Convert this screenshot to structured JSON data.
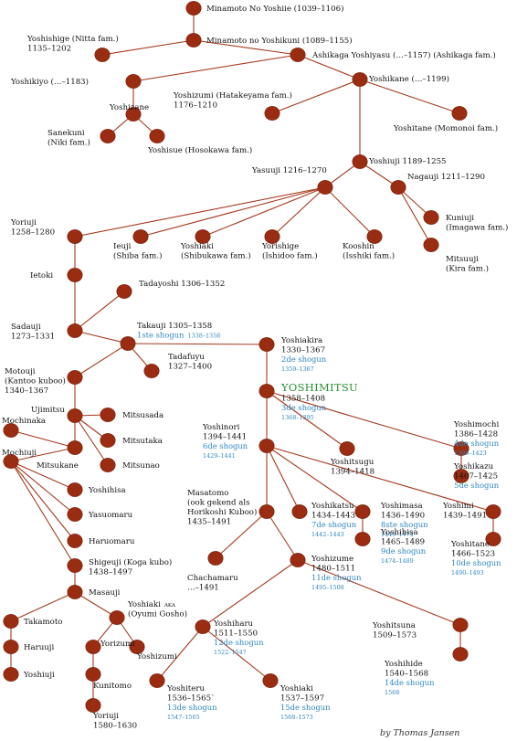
{
  "colors": {
    "line": "#a6391e",
    "node": "#9a2c12",
    "shogun_text": "#2f86bf",
    "highlight": "#2a8f35",
    "text": "#111111"
  },
  "labels": [
    {
      "id": "minamoto-yoshiie",
      "lines": [
        {
          "t": "Minamoto No Yoshiie (1039–1106)"
        }
      ]
    },
    {
      "id": "yoshishige",
      "lines": [
        {
          "t": "Yoshishige (Nitta fam.)"
        },
        {
          "t": "1135–1202"
        }
      ]
    },
    {
      "id": "minamoto-yoshikuni",
      "lines": [
        {
          "t": "Minamoto no Yoshikuni (1089–1155)"
        }
      ]
    },
    {
      "id": "ashikaga-yoshiyasu",
      "lines": [
        {
          "t": "Ashikaga Yoshiyasu (…–1157) (Ashikaga fam.)"
        }
      ]
    },
    {
      "id": "yoshikiyo",
      "lines": [
        {
          "t": "Yoshikiyo (…–1183)"
        }
      ]
    },
    {
      "id": "yoshikane",
      "lines": [
        {
          "t": "Yoshikane (…–1199)"
        }
      ]
    },
    {
      "id": "yoshizumi-hatakeyama",
      "lines": [
        {
          "t": "Yoshizumi (Hatakeyama fam.)"
        },
        {
          "t": "1176–1210"
        }
      ]
    },
    {
      "id": "yoshizane",
      "lines": [
        {
          "t": "Yoshizane"
        }
      ]
    },
    {
      "id": "sanekuni",
      "lines": [
        {
          "t": "Sanekuni"
        },
        {
          "t": "(Niki fam.)"
        }
      ]
    },
    {
      "id": "yoshisue",
      "lines": [
        {
          "t": "Yoshisue (Hosokawa fam.)"
        }
      ]
    },
    {
      "id": "yoshitane-momonoi",
      "lines": [
        {
          "t": "Yoshitane (Momonoi fam.)"
        }
      ]
    },
    {
      "id": "yoshiuji",
      "lines": [
        {
          "t": "Yoshiuji 1189–1255"
        }
      ]
    },
    {
      "id": "yasuuji",
      "lines": [
        {
          "t": "Yasuuji 1216–1270"
        }
      ]
    },
    {
      "id": "nagauji",
      "lines": [
        {
          "t": "Nagauji 1211–1290"
        }
      ]
    },
    {
      "id": "yoriuji",
      "lines": [
        {
          "t": "Yoriuji"
        },
        {
          "t": "1258–1280"
        }
      ]
    },
    {
      "id": "ieuji",
      "lines": [
        {
          "t": "Ieuji"
        },
        {
          "t": "(Shiba fam.)"
        }
      ]
    },
    {
      "id": "yoshiaki-shibukawa",
      "lines": [
        {
          "t": "Yoshiaki"
        },
        {
          "t": "(Shibukawa fam.)"
        }
      ]
    },
    {
      "id": "yorishige",
      "lines": [
        {
          "t": "Yorishige"
        },
        {
          "t": "(Ishidoo fam.)"
        }
      ]
    },
    {
      "id": "kooshin",
      "lines": [
        {
          "t": "Kooshin"
        },
        {
          "t": "(Isshiki fam.)"
        }
      ]
    },
    {
      "id": "kuniuji",
      "lines": [
        {
          "t": "Kuniuji"
        },
        {
          "t": "(Imagawa fam.)"
        }
      ]
    },
    {
      "id": "mitsuuji",
      "lines": [
        {
          "t": "Mitsuuji"
        },
        {
          "t": "(Kira fam.)"
        }
      ]
    },
    {
      "id": "ietoki",
      "lines": [
        {
          "t": "Ietoki"
        }
      ]
    },
    {
      "id": "tadayoshi",
      "lines": [
        {
          "t": "Tadayoshi 1306–1352"
        }
      ]
    },
    {
      "id": "sadauji",
      "lines": [
        {
          "t": "Sadauji"
        },
        {
          "t": "1273–1331"
        }
      ]
    },
    {
      "id": "takauji",
      "lines": [
        {
          "t": "Takauji 1305–1358"
        },
        {
          "t": "1ste shogun",
          "c": "sh",
          "tail": {
            "t": "1338–1358",
            "c": "yr"
          }
        }
      ]
    },
    {
      "id": "tadafuyu",
      "lines": [
        {
          "t": "Tadafuyu"
        },
        {
          "t": "1327–1400"
        }
      ]
    },
    {
      "id": "yoshiakira",
      "lines": [
        {
          "t": "Yoshiakira"
        },
        {
          "t": "1330–1367"
        },
        {
          "t": "2de shogun",
          "c": "sh"
        },
        {
          "t": "1359–1367",
          "c": "yr"
        }
      ]
    },
    {
      "id": "motouji",
      "lines": [
        {
          "t": "Motouji"
        },
        {
          "t": "(Kantoo kuboo)"
        },
        {
          "t": "1340–1367"
        }
      ]
    },
    {
      "id": "yoshimitsu",
      "lines": [
        {
          "t": "YOSHIMITSU",
          "c": "big"
        },
        {
          "t": "1358–1408"
        },
        {
          "t": "3de shogun",
          "c": "sh"
        },
        {
          "t": "1368–1395",
          "c": "yr"
        }
      ]
    },
    {
      "id": "ujimitsu",
      "lines": [
        {
          "t": "Ujimitsu"
        }
      ]
    },
    {
      "id": "mochinaka",
      "lines": [
        {
          "t": "Mochinaka"
        }
      ]
    },
    {
      "id": "mitsusada",
      "lines": [
        {
          "t": "Mitsusada"
        }
      ]
    },
    {
      "id": "mochiuji",
      "lines": [
        {
          "t": "Mochiuji"
        }
      ]
    },
    {
      "id": "mitsutaka",
      "lines": [
        {
          "t": "Mitsutaka"
        }
      ]
    },
    {
      "id": "mitsukane",
      "lines": [
        {
          "t": "Mitsukane"
        }
      ]
    },
    {
      "id": "mitsunao",
      "lines": [
        {
          "t": "Mitsunao"
        }
      ]
    },
    {
      "id": "yoshinori",
      "lines": [
        {
          "t": "Yoshinori"
        },
        {
          "t": "1394–1441"
        },
        {
          "t": "6de shogun",
          "c": "sh"
        },
        {
          "t": "1429–1441",
          "c": "yr"
        }
      ]
    },
    {
      "id": "yoshitsugu",
      "lines": [
        {
          "t": "Yoshitsugu"
        },
        {
          "t": "1394–1418"
        }
      ]
    },
    {
      "id": "yoshimochi",
      "lines": [
        {
          "t": "Yoshimochi"
        },
        {
          "t": "1386–1428"
        },
        {
          "t": "4de shogun",
          "c": "sh"
        },
        {
          "t": "1395–1423",
          "c": "yr"
        }
      ]
    },
    {
      "id": "yoshikazu",
      "lines": [
        {
          "t": "Yoshikazu"
        },
        {
          "t": "1407–1425"
        },
        {
          "t": "5de shogun",
          "c": "sh"
        }
      ]
    },
    {
      "id": "yoshihisa-koga",
      "lines": [
        {
          "t": "Yoshihisa"
        }
      ]
    },
    {
      "id": "yasuomaru",
      "lines": [
        {
          "t": "Yasuomaru"
        }
      ]
    },
    {
      "id": "masatomo",
      "lines": [
        {
          "t": "Masatomo"
        },
        {
          "t": "(ook gekend als"
        },
        {
          "t": "Horikoshi Kuboo)"
        },
        {
          "t": "1435–1491"
        }
      ]
    },
    {
      "id": "yoshikatsu",
      "lines": [
        {
          "t": "Yoshikatsu"
        },
        {
          "t": "1434–1443"
        },
        {
          "t": "7de shogun",
          "c": "sh"
        },
        {
          "t": "1442–1443",
          "c": "yr"
        }
      ]
    },
    {
      "id": "yoshimasa",
      "lines": [
        {
          "t": "Yoshimasa"
        },
        {
          "t": "1436–1490"
        },
        {
          "t": "8ste shogun",
          "c": "sh"
        },
        {
          "t": "1449–1474",
          "c": "yr"
        }
      ]
    },
    {
      "id": "yoshimi",
      "lines": [
        {
          "t": "Yoshimi"
        },
        {
          "t": "1439–1491"
        }
      ]
    },
    {
      "id": "haruomaru",
      "lines": [
        {
          "t": "Haruomaru"
        }
      ]
    },
    {
      "id": "yoshihisa",
      "lines": [
        {
          "t": "Yoshihisa"
        },
        {
          "t": "1465–1489"
        },
        {
          "t": "9de shogun",
          "c": "sh"
        },
        {
          "t": "1474–1489",
          "c": "yr"
        }
      ]
    },
    {
      "id": "yoshitane",
      "lines": [
        {
          "t": "Yoshitane"
        },
        {
          "t": "1466–1523"
        },
        {
          "t": "10de shogun",
          "c": "sh"
        },
        {
          "t": "1490–1493",
          "c": "yr"
        }
      ]
    },
    {
      "id": "shigeuji",
      "lines": [
        {
          "t": "Shigeuji (Koga kubo)"
        },
        {
          "t": "1438–1497"
        }
      ]
    },
    {
      "id": "chachamaru",
      "lines": [
        {
          "t": "Chachamaru"
        },
        {
          "t": "…–1491"
        }
      ]
    },
    {
      "id": "yoshizume",
      "lines": [
        {
          "t": "Yoshizume"
        },
        {
          "t": "1480–1511"
        },
        {
          "t": "11de shogun",
          "c": "sh"
        },
        {
          "t": "1495–1508",
          "c": "yr"
        }
      ]
    },
    {
      "id": "masauji",
      "lines": [
        {
          "t": "Masauji"
        }
      ]
    },
    {
      "id": "yoshiharu",
      "lines": [
        {
          "t": "Yoshiharu"
        },
        {
          "t": "1511–1550"
        },
        {
          "t": "12de shogun",
          "c": "sh"
        },
        {
          "t": "1522–1547",
          "c": "yr"
        }
      ]
    },
    {
      "id": "yoshitsuna",
      "lines": [
        {
          "t": "Yoshitsuna"
        },
        {
          "t": "1509–1573"
        }
      ]
    },
    {
      "id": "takamoto",
      "lines": [
        {
          "t": "Takamoto"
        }
      ]
    },
    {
      "id": "yoshiaki-koga",
      "lines": [
        {
          "t": "Yoshiaki",
          "tail": {
            "t": "AKA",
            "c": "aka"
          }
        },
        {
          "t": "(Oyumi Gosho)"
        }
      ]
    },
    {
      "id": "haruuji",
      "lines": [
        {
          "t": "Haruuji"
        }
      ]
    },
    {
      "id": "yorizumi",
      "lines": [
        {
          "t": "Yorizumi"
        }
      ]
    },
    {
      "id": "yoshizumi",
      "lines": [
        {
          "t": "Yoshizumi"
        }
      ]
    },
    {
      "id": "yoshihide",
      "lines": [
        {
          "t": "Yoshihide"
        },
        {
          "t": "1540–1568"
        },
        {
          "t": "14de shogun",
          "c": "sh"
        },
        {
          "t": "1568",
          "c": "yr"
        }
      ]
    },
    {
      "id": "yoshiuji-koga",
      "lines": [
        {
          "t": "Yoshiuji"
        }
      ]
    },
    {
      "id": "kunitomo",
      "lines": [
        {
          "t": "Kunitomo"
        }
      ]
    },
    {
      "id": "yoshiteru",
      "lines": [
        {
          "t": "Yoshiteru"
        },
        {
          "t": "1536–1565`"
        },
        {
          "t": "13de shogun",
          "c": "sh"
        },
        {
          "t": "1547–1565",
          "c": "yr"
        }
      ]
    },
    {
      "id": "yoshiaki",
      "lines": [
        {
          "t": "Yoshiaki"
        },
        {
          "t": "1537–1597"
        },
        {
          "t": "15de shogun",
          "c": "sh"
        },
        {
          "t": "1568–1573",
          "c": "yr"
        }
      ]
    },
    {
      "id": "yoriuji-koga",
      "lines": [
        {
          "t": "Yoriuji"
        },
        {
          "t": "1580–1630"
        }
      ]
    }
  ],
  "credit": "by Thomas Jansen"
}
